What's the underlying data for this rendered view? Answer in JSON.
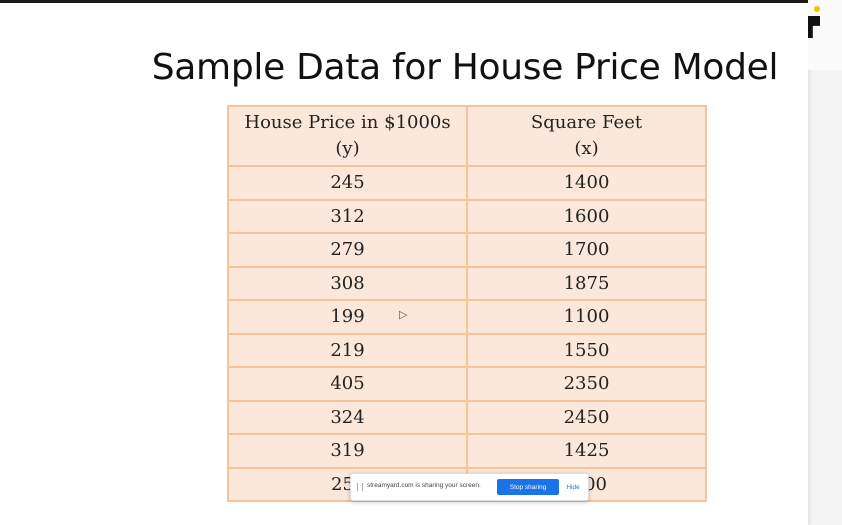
{
  "slide": {
    "title": "Sample Data for House Price Model",
    "table": {
      "headers": [
        {
          "line1": "House Price in $1000s",
          "line2": "(y)"
        },
        {
          "line1": "Square Feet",
          "line2": "(x)"
        }
      ],
      "rows": [
        [
          "245",
          "1400"
        ],
        [
          "312",
          "1600"
        ],
        [
          "279",
          "1700"
        ],
        [
          "308",
          "1875"
        ],
        [
          "199",
          "1100"
        ],
        [
          "219",
          "1550"
        ],
        [
          "405",
          "2350"
        ],
        [
          "324",
          "2450"
        ],
        [
          "319",
          "1425"
        ],
        [
          "25",
          "00"
        ]
      ]
    }
  },
  "share_bar": {
    "message": "streamyard.com is sharing your screen.",
    "stop_label": "Stop sharing",
    "hide_label": "Hide"
  }
}
